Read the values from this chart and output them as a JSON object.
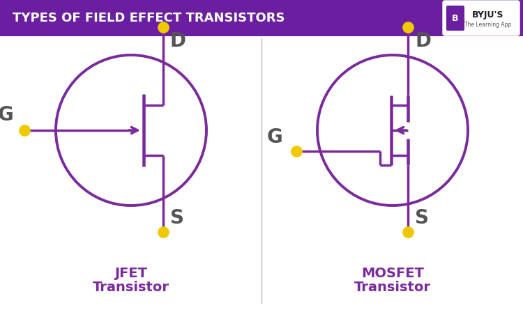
{
  "title": "TYPES OF FIELD EFFECT TRANSISTORS",
  "title_bg": "#6b1fa0",
  "title_color": "#ffffff",
  "body_bg": "#ffffff",
  "purple": "#7b2a9e",
  "yellow": "#f0c800",
  "gray_label": "#555555",
  "label_color": "#7b2a9e",
  "jfet_label1": "JFET",
  "jfet_label2": "Transistor",
  "mosfet_label1": "MOSFET",
  "mosfet_label2": "Transistor",
  "divider_color": "#bbbbbb",
  "byju_bg": "#ffffff",
  "figsize": [
    7.5,
    4.55
  ],
  "dpi": 100
}
